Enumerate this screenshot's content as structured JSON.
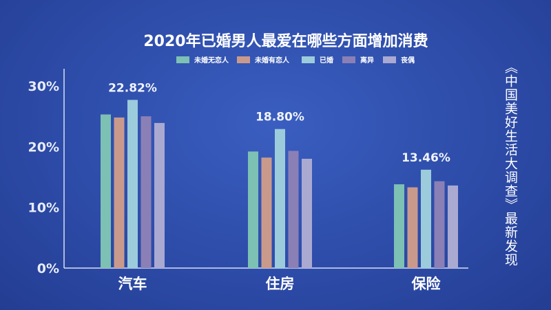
{
  "chart_data": {
    "type": "bar",
    "title": "2020年已婚男人最爱在哪些方面增加消费",
    "categories": [
      "汽车",
      "住房",
      "保险"
    ],
    "series": [
      {
        "name": "未婚无恋人",
        "color": "#7dc0b4",
        "values": [
          25.3,
          19.2,
          13.8
        ]
      },
      {
        "name": "未婚有恋人",
        "color": "#c99a8c",
        "values": [
          24.8,
          18.2,
          13.3
        ]
      },
      {
        "name": "已婚",
        "color": "#9ccbdc",
        "values": [
          27.7,
          22.9,
          16.2
        ]
      },
      {
        "name": "离异",
        "color": "#8a80b6",
        "values": [
          25.0,
          19.3,
          14.3
        ]
      },
      {
        "name": "丧偶",
        "color": "#aaa9d2",
        "values": [
          23.9,
          18.0,
          13.6
        ]
      }
    ],
    "annotations": [
      "22.82%",
      "18.80%",
      "13.46%"
    ],
    "yticks": [
      "0%",
      "10%",
      "20%",
      "30%"
    ],
    "ylim": [
      0,
      30
    ],
    "grid": false,
    "legend": "top"
  },
  "side_note": "《中国美好生活大调查》最新发现"
}
